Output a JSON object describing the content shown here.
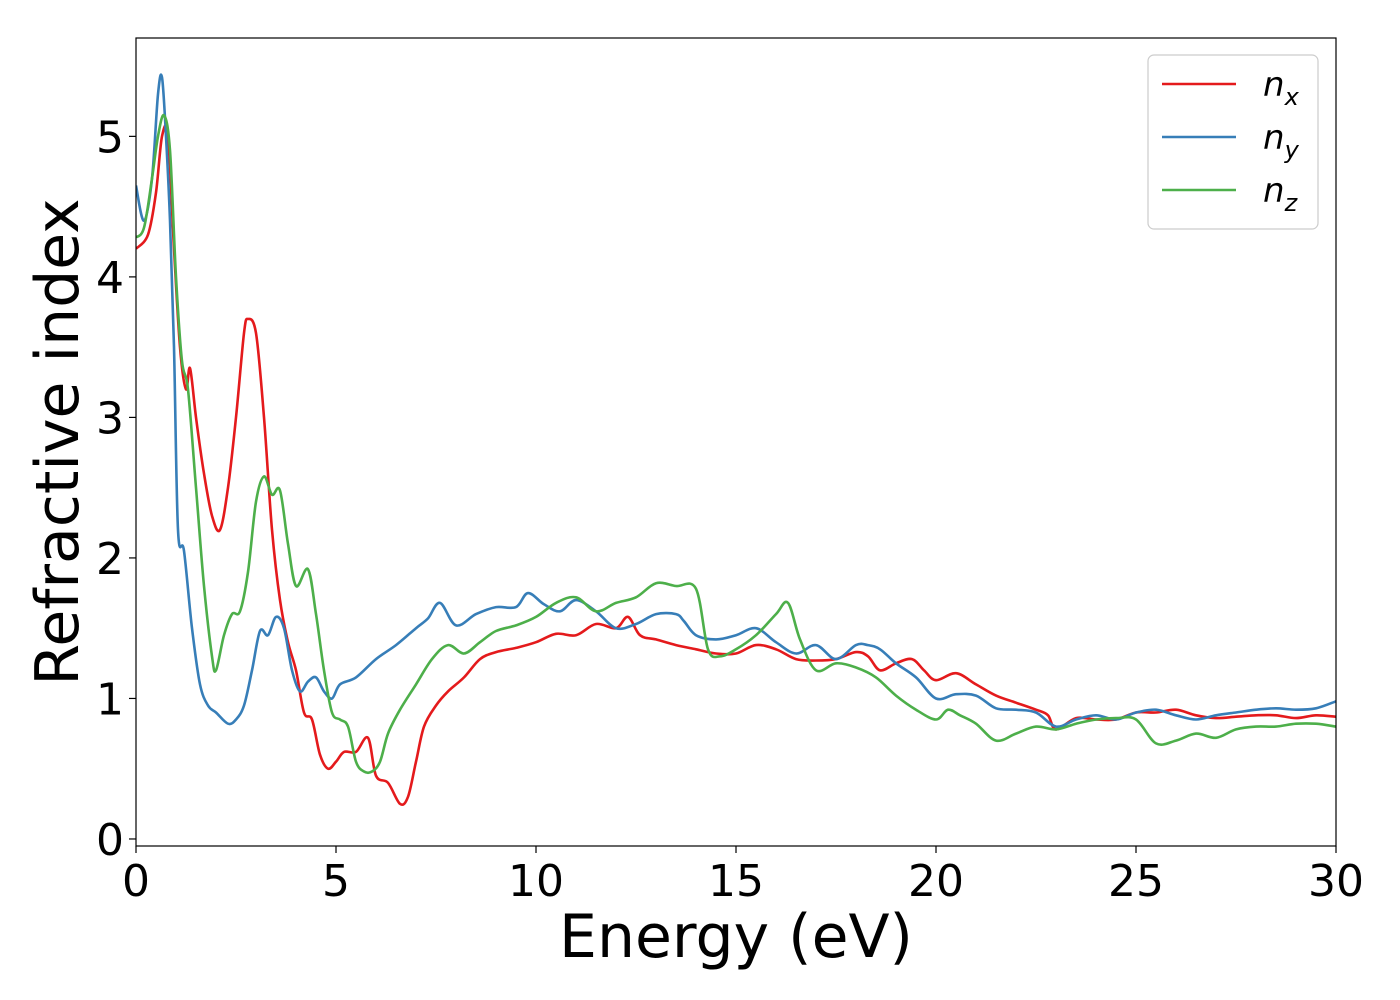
{
  "chart_data": {
    "type": "line",
    "xlabel": "Energy (eV)",
    "ylabel": "Refractive index",
    "xlim": [
      0,
      30
    ],
    "ylim": [
      -0.05,
      5.7
    ],
    "xticks": [
      0,
      5,
      10,
      15,
      20,
      25,
      30
    ],
    "yticks": [
      0,
      1,
      2,
      3,
      4,
      5
    ],
    "grid": false,
    "legend_position": "top-right",
    "series": [
      {
        "name": "n",
        "subscript": "x",
        "color": "#e41a1c",
        "x": [
          0,
          0.3,
          0.5,
          0.65,
          0.8,
          0.95,
          1.1,
          1.25,
          1.35,
          1.5,
          1.7,
          1.9,
          2.1,
          2.3,
          2.5,
          2.7,
          2.8,
          3.0,
          3.2,
          3.4,
          3.6,
          3.8,
          4.0,
          4.2,
          4.4,
          4.6,
          4.8,
          5.0,
          5.2,
          5.5,
          5.8,
          6.0,
          6.3,
          6.6,
          6.8,
          7.0,
          7.2,
          7.5,
          7.8,
          8.2,
          8.6,
          9.0,
          9.5,
          10.0,
          10.5,
          11.0,
          11.5,
          12.0,
          12.3,
          12.6,
          13.0,
          13.5,
          14.0,
          14.5,
          15.0,
          15.5,
          16.0,
          16.5,
          17.0,
          17.5,
          18.0,
          18.3,
          18.6,
          19.0,
          19.4,
          19.7,
          20.0,
          20.5,
          21.0,
          21.5,
          22.0,
          22.5,
          22.8,
          23.0,
          23.5,
          24.0,
          24.5,
          25.0,
          25.5,
          26.0,
          26.5,
          27.0,
          27.5,
          28.0,
          28.5,
          29.0,
          29.5,
          30.0
        ],
        "values": [
          4.2,
          4.3,
          4.6,
          5.0,
          5.0,
          4.2,
          3.5,
          3.2,
          3.35,
          3.0,
          2.6,
          2.3,
          2.2,
          2.5,
          3.0,
          3.6,
          3.7,
          3.6,
          3.0,
          2.2,
          1.7,
          1.4,
          1.2,
          0.9,
          0.85,
          0.6,
          0.5,
          0.55,
          0.62,
          0.62,
          0.72,
          0.45,
          0.4,
          0.25,
          0.3,
          0.55,
          0.8,
          0.95,
          1.05,
          1.15,
          1.28,
          1.33,
          1.36,
          1.4,
          1.46,
          1.45,
          1.53,
          1.5,
          1.58,
          1.45,
          1.42,
          1.38,
          1.35,
          1.32,
          1.32,
          1.38,
          1.35,
          1.28,
          1.27,
          1.28,
          1.33,
          1.3,
          1.2,
          1.25,
          1.28,
          1.2,
          1.13,
          1.18,
          1.1,
          1.02,
          0.97,
          0.92,
          0.88,
          0.78,
          0.86,
          0.85,
          0.85,
          0.9,
          0.9,
          0.92,
          0.88,
          0.86,
          0.87,
          0.88,
          0.88,
          0.86,
          0.88,
          0.87
        ]
      },
      {
        "name": "n",
        "subscript": "y",
        "color": "#377eb8",
        "x": [
          0,
          0.2,
          0.4,
          0.55,
          0.65,
          0.75,
          0.85,
          0.95,
          1.05,
          1.2,
          1.4,
          1.6,
          1.8,
          2.0,
          2.3,
          2.5,
          2.7,
          2.9,
          3.1,
          3.3,
          3.5,
          3.7,
          3.9,
          4.1,
          4.3,
          4.5,
          4.7,
          4.9,
          5.1,
          5.5,
          6.0,
          6.5,
          7.0,
          7.3,
          7.6,
          8.0,
          8.5,
          9.0,
          9.5,
          9.8,
          10.2,
          10.6,
          11.0,
          11.5,
          12.0,
          12.5,
          13.0,
          13.5,
          13.7,
          14.0,
          14.5,
          15.0,
          15.5,
          16.0,
          16.5,
          17.0,
          17.5,
          18.0,
          18.3,
          18.6,
          19.0,
          19.5,
          20.0,
          20.5,
          21.0,
          21.5,
          22.0,
          22.5,
          23.0,
          23.5,
          24.0,
          24.5,
          25.0,
          25.5,
          26.0,
          26.5,
          27.0,
          27.5,
          28.0,
          28.5,
          29.0,
          29.5,
          30.0
        ],
        "values": [
          4.65,
          4.4,
          4.7,
          5.3,
          5.42,
          5.0,
          4.4,
          3.5,
          2.2,
          2.05,
          1.5,
          1.1,
          0.95,
          0.9,
          0.82,
          0.85,
          0.95,
          1.2,
          1.48,
          1.45,
          1.58,
          1.5,
          1.2,
          1.05,
          1.12,
          1.15,
          1.05,
          1.0,
          1.1,
          1.15,
          1.28,
          1.38,
          1.5,
          1.57,
          1.68,
          1.52,
          1.6,
          1.65,
          1.65,
          1.75,
          1.67,
          1.62,
          1.7,
          1.62,
          1.5,
          1.53,
          1.6,
          1.6,
          1.55,
          1.45,
          1.42,
          1.45,
          1.5,
          1.4,
          1.32,
          1.38,
          1.28,
          1.38,
          1.38,
          1.35,
          1.25,
          1.15,
          1.0,
          1.03,
          1.02,
          0.93,
          0.92,
          0.9,
          0.8,
          0.85,
          0.88,
          0.85,
          0.9,
          0.92,
          0.88,
          0.85,
          0.88,
          0.9,
          0.92,
          0.93,
          0.92,
          0.93,
          0.98
        ]
      },
      {
        "name": "n",
        "subscript": "z",
        "color": "#4daf4a",
        "x": [
          0,
          0.2,
          0.4,
          0.55,
          0.7,
          0.85,
          1.0,
          1.15,
          1.3,
          1.5,
          1.7,
          1.9,
          2.0,
          2.2,
          2.4,
          2.6,
          2.8,
          3.0,
          3.2,
          3.4,
          3.6,
          3.8,
          4.0,
          4.3,
          4.5,
          4.7,
          4.9,
          5.1,
          5.3,
          5.5,
          5.7,
          5.9,
          6.1,
          6.3,
          6.6,
          7.0,
          7.4,
          7.8,
          8.2,
          8.6,
          9.0,
          9.5,
          10.0,
          10.5,
          11.0,
          11.5,
          12.0,
          12.5,
          13.0,
          13.5,
          14.0,
          14.3,
          14.6,
          15.0,
          15.5,
          16.0,
          16.3,
          16.6,
          17.0,
          17.5,
          18.0,
          18.5,
          19.0,
          19.5,
          20.0,
          20.3,
          20.6,
          21.0,
          21.5,
          22.0,
          22.5,
          23.0,
          23.5,
          24.0,
          24.5,
          25.0,
          25.5,
          26.0,
          26.5,
          27.0,
          27.5,
          28.0,
          28.5,
          29.0,
          29.5,
          30.0
        ],
        "values": [
          4.28,
          4.35,
          4.7,
          5.0,
          5.15,
          4.9,
          4.0,
          3.4,
          3.2,
          2.5,
          1.8,
          1.3,
          1.2,
          1.45,
          1.6,
          1.62,
          1.9,
          2.4,
          2.58,
          2.45,
          2.48,
          2.1,
          1.8,
          1.92,
          1.6,
          1.2,
          0.9,
          0.85,
          0.8,
          0.55,
          0.48,
          0.48,
          0.55,
          0.75,
          0.92,
          1.1,
          1.28,
          1.38,
          1.32,
          1.4,
          1.48,
          1.52,
          1.58,
          1.68,
          1.72,
          1.62,
          1.68,
          1.72,
          1.82,
          1.8,
          1.78,
          1.35,
          1.3,
          1.35,
          1.45,
          1.6,
          1.68,
          1.42,
          1.2,
          1.25,
          1.22,
          1.15,
          1.02,
          0.92,
          0.85,
          0.92,
          0.88,
          0.82,
          0.7,
          0.75,
          0.8,
          0.78,
          0.82,
          0.85,
          0.86,
          0.85,
          0.68,
          0.7,
          0.75,
          0.72,
          0.78,
          0.8,
          0.8,
          0.82,
          0.82,
          0.8
        ]
      }
    ]
  }
}
